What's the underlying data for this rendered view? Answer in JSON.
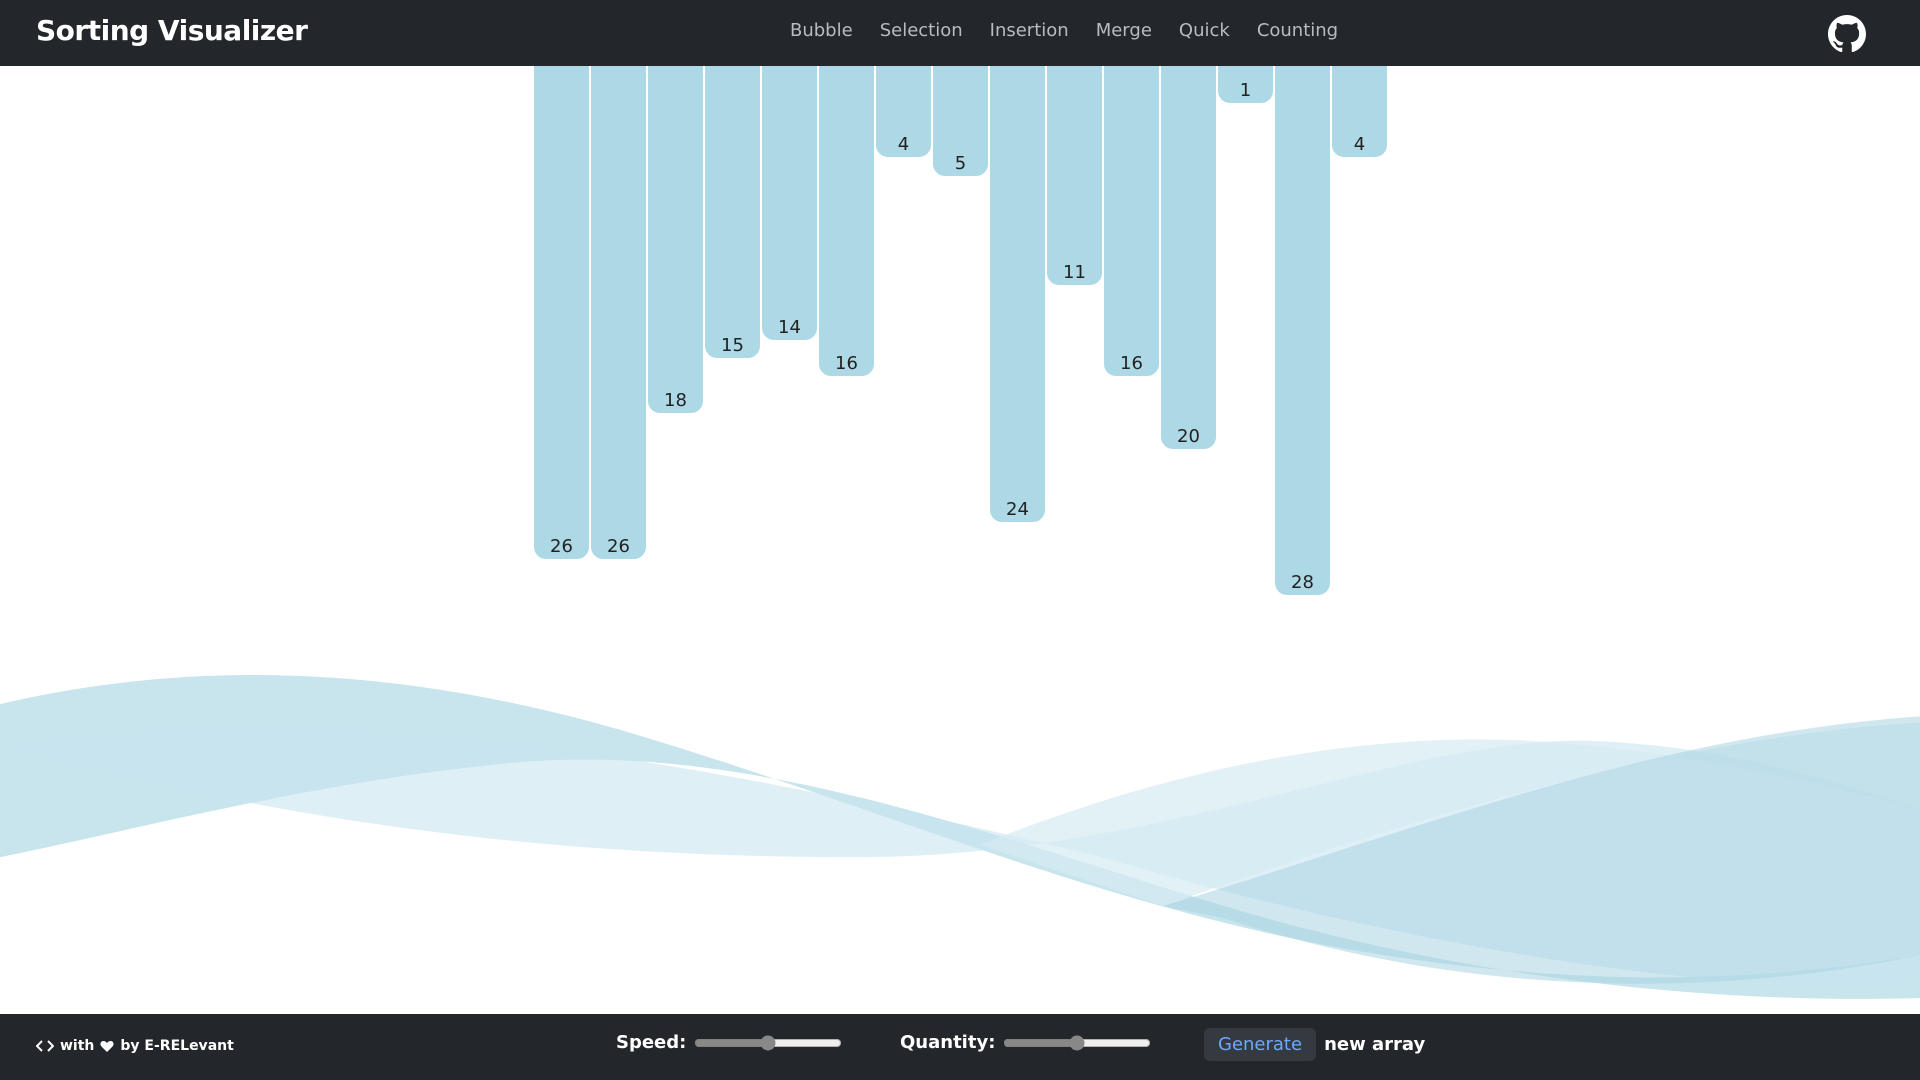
{
  "header": {
    "title": "Sorting Visualizer",
    "nav": [
      "Bubble",
      "Selection",
      "Insertion",
      "Merge",
      "Quick",
      "Counting"
    ]
  },
  "bars": [
    26,
    26,
    18,
    15,
    14,
    16,
    4,
    5,
    24,
    11,
    16,
    20,
    1,
    28,
    4
  ],
  "footer": {
    "credit_with": "with",
    "credit_by": "by E-RELevant",
    "speed_label": "Speed:",
    "quantity_label": "Quantity:",
    "generate_button": "Generate",
    "generate_text": "new array"
  }
}
